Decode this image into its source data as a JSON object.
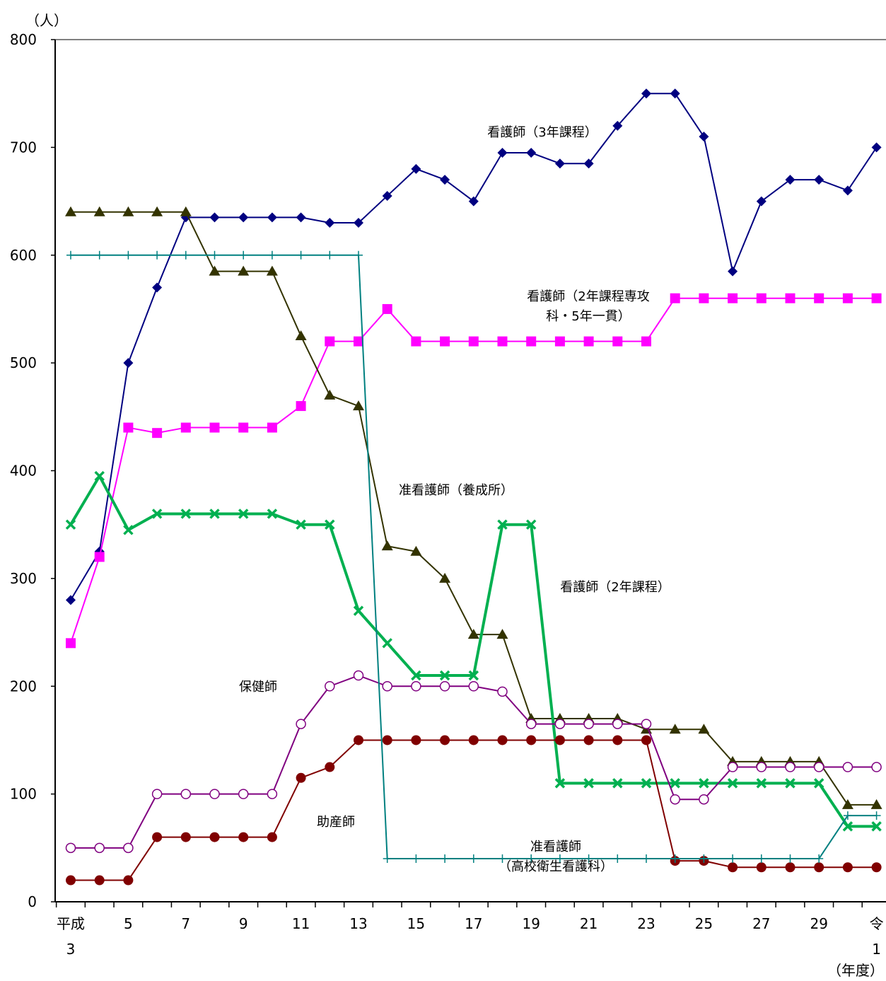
{
  "chart_data": {
    "type": "line",
    "y_unit": "（人）",
    "x_unit": "（年度）",
    "ylim": [
      0,
      800
    ],
    "yticks": [
      0,
      100,
      200,
      300,
      400,
      500,
      600,
      700,
      800
    ],
    "grid": false,
    "x_years": [
      "H3",
      "H4",
      "H5",
      "H6",
      "H7",
      "H8",
      "H9",
      "H10",
      "H11",
      "H12",
      "H13",
      "H14",
      "H15",
      "H16",
      "H17",
      "H18",
      "H19",
      "H20",
      "H21",
      "H22",
      "H23",
      "H24",
      "H25",
      "H26",
      "H27",
      "H28",
      "H29",
      "H30",
      "R1"
    ],
    "x_tick_labels": [
      {
        "index": 0,
        "line1": "平成",
        "line2": "3"
      },
      {
        "index": 2,
        "line1": "5",
        "line2": ""
      },
      {
        "index": 4,
        "line1": "7",
        "line2": ""
      },
      {
        "index": 6,
        "line1": "9",
        "line2": ""
      },
      {
        "index": 8,
        "line1": "11",
        "line2": ""
      },
      {
        "index": 10,
        "line1": "13",
        "line2": ""
      },
      {
        "index": 12,
        "line1": "15",
        "line2": ""
      },
      {
        "index": 14,
        "line1": "17",
        "line2": ""
      },
      {
        "index": 16,
        "line1": "19",
        "line2": ""
      },
      {
        "index": 18,
        "line1": "21",
        "line2": ""
      },
      {
        "index": 20,
        "line1": "23",
        "line2": ""
      },
      {
        "index": 22,
        "line1": "25",
        "line2": ""
      },
      {
        "index": 24,
        "line1": "27",
        "line2": ""
      },
      {
        "index": 26,
        "line1": "29",
        "line2": ""
      },
      {
        "index": 28,
        "line1": "令",
        "line2": "1"
      }
    ],
    "series": [
      {
        "key": "nurse3",
        "color": "#000080",
        "marker": "diamond",
        "stroke_w": 2,
        "values": [
          280,
          325,
          500,
          570,
          635,
          635,
          635,
          635,
          635,
          630,
          630,
          655,
          680,
          670,
          650,
          695,
          695,
          685,
          685,
          720,
          750,
          750,
          710,
          585,
          650,
          670,
          670,
          660,
          700
        ]
      },
      {
        "key": "nurse2special",
        "color": "#ff00ff",
        "marker": "square",
        "stroke_w": 2,
        "values": [
          240,
          320,
          440,
          435,
          440,
          440,
          440,
          440,
          460,
          520,
          520,
          550,
          520,
          520,
          520,
          520,
          520,
          520,
          520,
          520,
          520,
          560,
          560,
          560,
          560,
          560,
          560,
          560,
          560
        ]
      },
      {
        "key": "assistant_school",
        "color": "#333300",
        "marker": "triangle",
        "stroke_w": 2,
        "values": [
          640,
          640,
          640,
          640,
          640,
          585,
          585,
          585,
          525,
          470,
          460,
          330,
          325,
          300,
          248,
          248,
          170,
          170,
          170,
          170,
          160,
          160,
          160,
          130,
          130,
          130,
          130,
          90,
          90
        ]
      },
      {
        "key": "nurse2",
        "color": "#00b050",
        "marker": "x",
        "stroke_w": 4,
        "values": [
          350,
          395,
          345,
          360,
          360,
          360,
          360,
          360,
          350,
          350,
          270,
          240,
          210,
          210,
          210,
          350,
          350,
          110,
          110,
          110,
          110,
          110,
          110,
          110,
          110,
          110,
          110,
          70,
          70
        ]
      },
      {
        "key": "public_health",
        "color": "#800080",
        "marker": "circle-open",
        "stroke_w": 2,
        "values": [
          50,
          50,
          50,
          100,
          100,
          100,
          100,
          100,
          165,
          200,
          210,
          200,
          200,
          200,
          200,
          195,
          165,
          165,
          165,
          165,
          165,
          95,
          95,
          125,
          125,
          125,
          125,
          125,
          125
        ]
      },
      {
        "key": "midwife",
        "color": "#800000",
        "marker": "circle",
        "stroke_w": 2,
        "values": [
          20,
          20,
          20,
          60,
          60,
          60,
          60,
          60,
          115,
          125,
          150,
          150,
          150,
          150,
          150,
          150,
          150,
          150,
          150,
          150,
          150,
          38,
          38,
          32,
          32,
          32,
          32,
          32,
          32
        ]
      },
      {
        "key": "assistant_highschool",
        "color": "#008080",
        "marker": "plus",
        "stroke_w": 2,
        "values": [
          600,
          600,
          600,
          600,
          600,
          600,
          600,
          600,
          600,
          600,
          600,
          40,
          40,
          40,
          40,
          40,
          40,
          40,
          40,
          40,
          40,
          40,
          40,
          40,
          40,
          40,
          40,
          80,
          80
        ]
      }
    ],
    "annotations": [
      {
        "key": "nurse3",
        "lines": [
          "看護師（3年課程）"
        ]
      },
      {
        "key": "nurse2special",
        "lines": [
          "看護師（2年課程専攻",
          "科・5年一貫）"
        ]
      },
      {
        "key": "assistant_school",
        "lines": [
          "准看護師（養成所）"
        ]
      },
      {
        "key": "nurse2",
        "lines": [
          "看護師（2年課程）"
        ]
      },
      {
        "key": "public_health",
        "lines": [
          "保健師"
        ]
      },
      {
        "key": "midwife",
        "lines": [
          "助産師"
        ]
      },
      {
        "key": "assistant_highschool",
        "lines": [
          "准看護師",
          "（高校衛生看護科）"
        ]
      }
    ]
  }
}
